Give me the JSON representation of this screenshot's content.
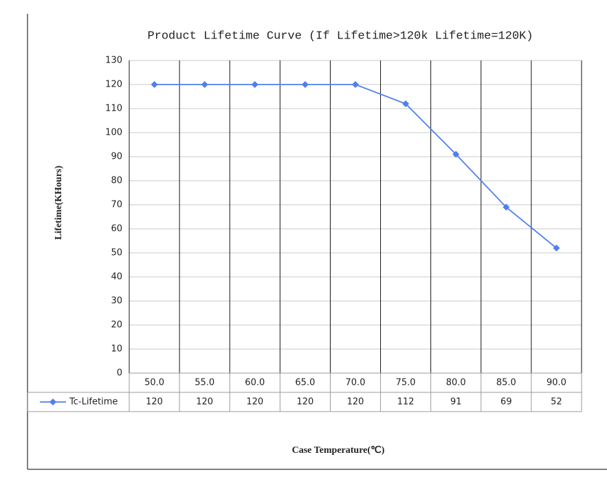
{
  "chart_data": {
    "type": "line",
    "title": "Product Lifetime Curve (If Lifetime>120k Lifetime=120K)",
    "y_label": "Lifetime(KHours)",
    "x_label": "Case Temperature(℃)",
    "categories": [
      "50.0",
      "55.0",
      "60.0",
      "65.0",
      "70.0",
      "75.0",
      "80.0",
      "85.0",
      "90.0"
    ],
    "series": [
      {
        "name": "Tc-Lifetime",
        "color": "#4f7fef",
        "values": [
          120,
          120,
          120,
          120,
          120,
          112,
          91,
          69,
          52
        ]
      }
    ],
    "ylim": [
      0,
      130
    ],
    "yticks": [
      0,
      10,
      20,
      30,
      40,
      50,
      60,
      70,
      80,
      90,
      100,
      110,
      120,
      130
    ],
    "grid": true
  }
}
